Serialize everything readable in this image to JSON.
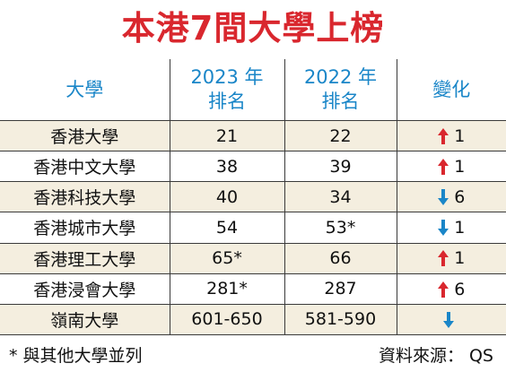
{
  "title": "本港7間大學上榜",
  "header": {
    "university": "大學",
    "rank2023_line1": "2023 年",
    "rank2023_line2": "排名",
    "rank2022_line1": "2022 年",
    "rank2022_line2": "排名",
    "change": "變化"
  },
  "rows": [
    {
      "name": "香港大學",
      "rank2023": "21",
      "rank2022": "22",
      "direction": "up",
      "change": "1"
    },
    {
      "name": "香港中文大學",
      "rank2023": "38",
      "rank2022": "39",
      "direction": "up",
      "change": "1"
    },
    {
      "name": "香港科技大學",
      "rank2023": "40",
      "rank2022": "34",
      "direction": "down",
      "change": "6"
    },
    {
      "name": "香港城市大學",
      "rank2023": "54",
      "rank2022": "53*",
      "direction": "down",
      "change": "1"
    },
    {
      "name": "香港理工大學",
      "rank2023": "65*",
      "rank2022": "66",
      "direction": "up",
      "change": "1"
    },
    {
      "name": "香港浸會大學",
      "rank2023": "281*",
      "rank2022": "287",
      "direction": "up",
      "change": "6"
    },
    {
      "name": "嶺南大學",
      "rank2023": "601-650",
      "rank2022": "581-590",
      "direction": "down",
      "change": ""
    }
  ],
  "footer": {
    "note": "* 與其他大學並列",
    "source": "資料來源： QS"
  },
  "colors": {
    "title": "#d9272e",
    "header_text": "#1a86c8",
    "arrow_up": "#d9272e",
    "arrow_down": "#1a86c8",
    "row_shade": "#f4eedf"
  }
}
